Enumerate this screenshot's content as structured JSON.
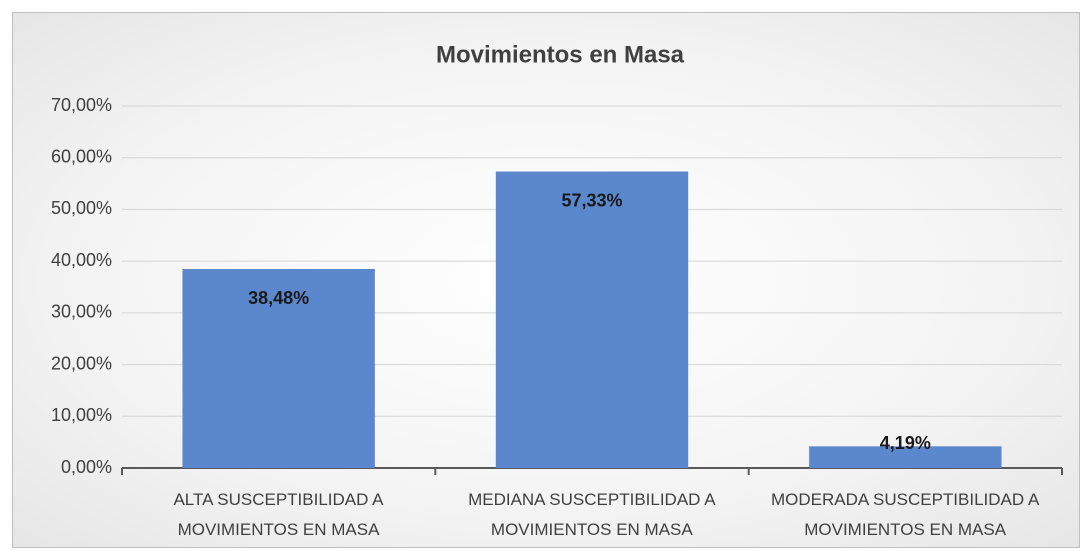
{
  "chart_data": {
    "type": "bar",
    "title": "Movimientos en Masa",
    "categories": [
      "ALTA SUSCEPTIBILIDAD A MOVIMIENTOS EN MASA",
      "MEDIANA SUSCEPTIBILIDAD A MOVIMIENTOS EN MASA",
      "MODERADA SUSCEPTIBILIDAD A MOVIMIENTOS EN MASA"
    ],
    "values": [
      38.48,
      57.33,
      4.19
    ],
    "value_labels": [
      "38,48%",
      "57,33%",
      "4,19%"
    ],
    "color": "#5b87cd",
    "ylim": [
      0,
      70
    ],
    "yticks": [
      {
        "value": 0,
        "label": "0,00%"
      },
      {
        "value": 10,
        "label": "10,00%"
      },
      {
        "value": 20,
        "label": "20,00%"
      },
      {
        "value": 30,
        "label": "30,00%"
      },
      {
        "value": 40,
        "label": "40,00%"
      },
      {
        "value": 50,
        "label": "50,00%"
      },
      {
        "value": 60,
        "label": "60,00%"
      },
      {
        "value": 70,
        "label": "70,00%"
      }
    ],
    "grid": true
  }
}
